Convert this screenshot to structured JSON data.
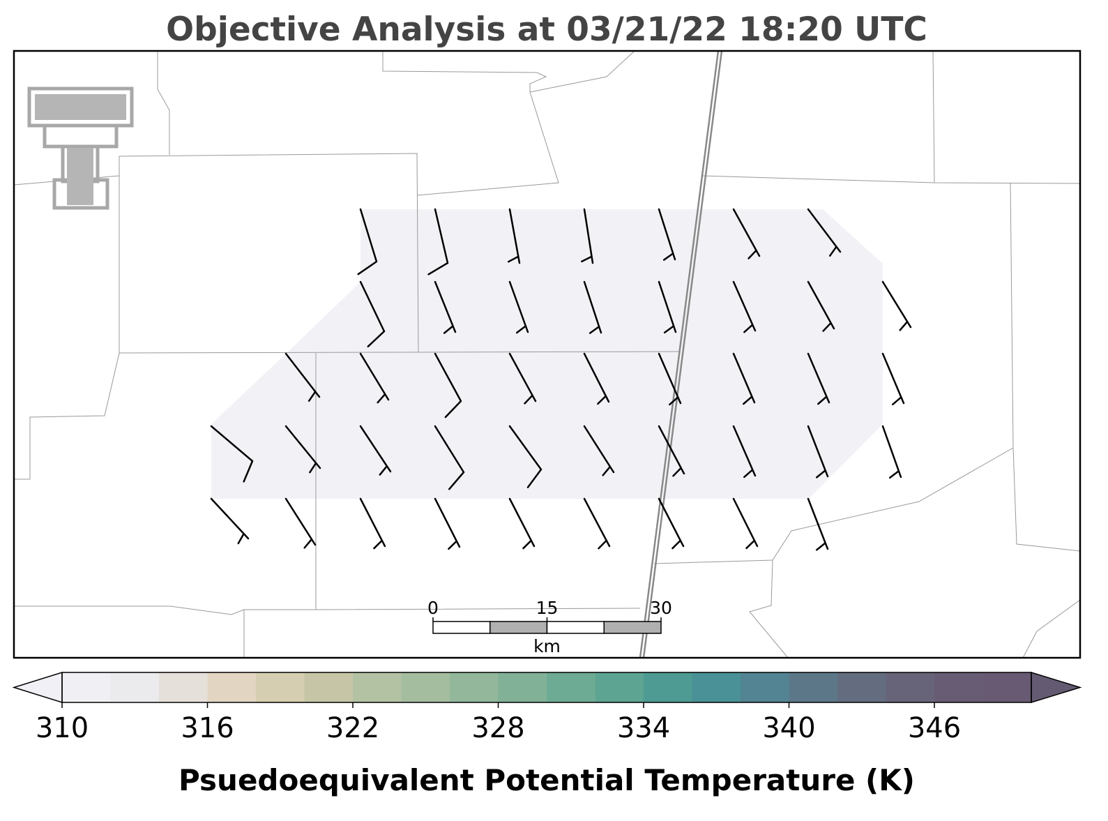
{
  "title": "Objective Analysis at 03/21/22 18:20 UTC",
  "scale_bar": {
    "ticks": [
      0,
      15,
      30
    ],
    "lim": [
      0,
      30
    ],
    "unit": "km"
  },
  "colorbar": {
    "label": "Psuedoequivalent Potential Temperature (K)",
    "lim": [
      310,
      350
    ],
    "ticks": [
      310,
      316,
      322,
      328,
      334,
      340,
      346
    ],
    "colors": [
      "#f0eff4",
      "#ebeaec",
      "#e6e0db",
      "#e2d5c1",
      "#d5ceb0",
      "#c6c6a6",
      "#b4c2a4",
      "#a4bd9f",
      "#92b79a",
      "#81b197",
      "#6eab94",
      "#5ea493",
      "#4e9b93",
      "#4a9197",
      "#538493",
      "#5c7888",
      "#646d80",
      "#676479",
      "#675c74",
      "#685a73"
    ],
    "under_color": "#f1f0f6",
    "over_color": "#645a72"
  }
}
